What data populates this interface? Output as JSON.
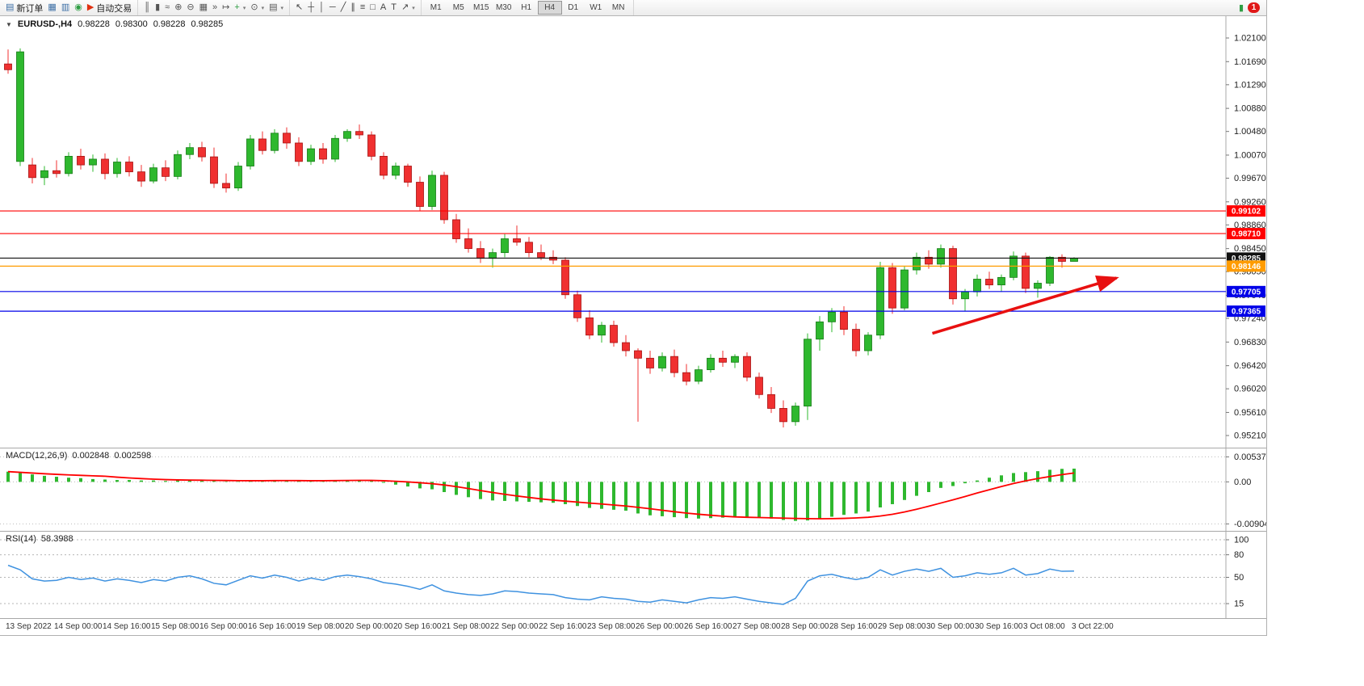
{
  "toolbar": {
    "groups": [
      {
        "items": [
          {
            "name": "new-order-button",
            "glyph": "▤",
            "glyph_color": "#3b6ea5",
            "label": "新订单"
          },
          {
            "name": "chart-window-icon",
            "glyph": "▦",
            "glyph_color": "#3b6ea5"
          },
          {
            "name": "market-watch-icon",
            "glyph": "▥",
            "glyph_color": "#3b6ea5"
          },
          {
            "name": "support-icon",
            "glyph": "◉",
            "glyph_color": "#2f9e44"
          },
          {
            "name": "auto-trading-button",
            "glyph": "▶",
            "glyph_color": "#e03010",
            "label": "自动交易"
          }
        ]
      },
      {
        "items": [
          {
            "name": "bar-chart-icon",
            "glyph": "║",
            "glyph_color": "#555"
          },
          {
            "name": "candlestick-chart-icon",
            "glyph": "▮",
            "glyph_color": "#555"
          },
          {
            "name": "line-chart-icon",
            "glyph": "≈",
            "glyph_color": "#555"
          },
          {
            "name": "zoom-in-icon",
            "glyph": "⊕",
            "glyph_color": "#555"
          },
          {
            "name": "zoom-out-icon",
            "glyph": "⊖",
            "glyph_color": "#555"
          },
          {
            "name": "tile-windows-icon",
            "glyph": "▦",
            "glyph_color": "#555"
          },
          {
            "name": "auto-scroll-icon",
            "glyph": "»",
            "glyph_color": "#555"
          },
          {
            "name": "chart-shift-icon",
            "glyph": "↦",
            "glyph_color": "#555"
          },
          {
            "name": "indicators-icon",
            "glyph": "+",
            "glyph_color": "#2f9e44",
            "caret": true
          },
          {
            "name": "periods-icon",
            "glyph": "⊙",
            "glyph_color": "#555",
            "caret": true
          },
          {
            "name": "templates-icon",
            "glyph": "▤",
            "glyph_color": "#555",
            "caret": true
          }
        ]
      },
      {
        "items": [
          {
            "name": "cursor-icon",
            "glyph": "↖",
            "glyph_color": "#444"
          },
          {
            "name": "crosshair-icon",
            "glyph": "┼",
            "glyph_color": "#444"
          },
          {
            "name": "vertical-line-icon",
            "glyph": "│",
            "glyph_color": "#444"
          },
          {
            "name": "horizontal-line-icon",
            "glyph": "─",
            "glyph_color": "#444"
          },
          {
            "name": "trendline-icon",
            "glyph": "╱",
            "glyph_color": "#444"
          },
          {
            "name": "channel-icon",
            "glyph": "∥",
            "glyph_color": "#444"
          },
          {
            "name": "fibonacci-icon",
            "glyph": "≡",
            "glyph_color": "#444"
          },
          {
            "name": "shapes-icon",
            "glyph": "□",
            "glyph_color": "#444"
          },
          {
            "name": "text-icon",
            "glyph": "A",
            "glyph_color": "#444"
          },
          {
            "name": "text-label-icon",
            "glyph": "T",
            "glyph_color": "#444"
          },
          {
            "name": "arrow-tools-icon",
            "glyph": "↗",
            "glyph_color": "#444",
            "caret": true
          }
        ]
      }
    ],
    "timeframes": [
      "M1",
      "M5",
      "M15",
      "M30",
      "H1",
      "H4",
      "D1",
      "W1",
      "MN"
    ],
    "active_timeframe": "H4",
    "notification_badge": "1"
  },
  "chart": {
    "collapse_icon": "▼",
    "symbol_label": "EURUSD-,H4",
    "open": "0.98228",
    "high": "0.98300",
    "low": "0.98228",
    "close": "0.98285"
  },
  "macd_label": {
    "title": "MACD(12,26,9)",
    "value1": "0.002848",
    "value2": "0.002598"
  },
  "rsi_label": {
    "title": "RSI(14)",
    "value": "58.3988"
  },
  "chart_data": [
    {
      "type": "candlestick",
      "symbol": "EURUSD",
      "timeframe": "H4",
      "title": "EURUSD-,H4",
      "ylim": [
        0.9521,
        1.021
      ],
      "y_ticks": [
        "1.02100",
        "1.01690",
        "1.01290",
        "1.00880",
        "1.00480",
        "1.00070",
        "0.99670",
        "0.99260",
        "0.98860",
        "0.98450",
        "0.98050",
        "0.97640",
        "0.97240",
        "0.96830",
        "0.96420",
        "0.96020",
        "0.95610",
        "0.95210"
      ],
      "time_labels": [
        "13 Sep 2022",
        "14 Sep 00:00",
        "14 Sep 16:00",
        "15 Sep 08:00",
        "16 Sep 00:00",
        "16 Sep 16:00",
        "19 Sep 08:00",
        "20 Sep 00:00",
        "20 Sep 16:00",
        "21 Sep 08:00",
        "22 Sep 00:00",
        "22 Sep 16:00",
        "23 Sep 08:00",
        "26 Sep 00:00",
        "26 Sep 16:00",
        "27 Sep 08:00",
        "28 Sep 00:00",
        "28 Sep 16:00",
        "29 Sep 08:00",
        "30 Sep 00:00",
        "30 Sep 16:00",
        "3 Oct 08:00",
        "3 Oct 22:00"
      ],
      "candles_per_time_label": 4,
      "up_color": "#2eb82e",
      "down_color": "#f03030",
      "up_border": "#157a15",
      "down_border": "#a51111",
      "candles": [
        [
          1.0165,
          1.019,
          1.0148,
          1.0155
        ],
        [
          0.9996,
          1.0192,
          0.9988,
          1.0186
        ],
        [
          0.999,
          1.0002,
          0.9958,
          0.9968
        ],
        [
          0.9968,
          0.9988,
          0.9955,
          0.998
        ],
        [
          0.998,
          0.9998,
          0.9968,
          0.9975
        ],
        [
          0.9975,
          1.0012,
          0.997,
          1.0005
        ],
        [
          1.0005,
          1.0018,
          0.9982,
          0.999
        ],
        [
          0.999,
          1.0008,
          0.9978,
          1.0
        ],
        [
          1.0,
          1.001,
          0.9965,
          0.9975
        ],
        [
          0.9975,
          1.0002,
          0.9968,
          0.9995
        ],
        [
          0.9995,
          1.0005,
          0.997,
          0.9978
        ],
        [
          0.9978,
          0.999,
          0.9952,
          0.9962
        ],
        [
          0.9962,
          0.9992,
          0.9958,
          0.9985
        ],
        [
          0.9985,
          0.9998,
          0.9962,
          0.997
        ],
        [
          0.997,
          1.0015,
          0.9965,
          1.0008
        ],
        [
          1.0008,
          1.0028,
          1.0,
          1.002
        ],
        [
          1.002,
          1.003,
          0.9996,
          1.0004
        ],
        [
          1.0004,
          1.002,
          0.995,
          0.9958
        ],
        [
          0.9958,
          0.9975,
          0.9942,
          0.995
        ],
        [
          0.995,
          0.9995,
          0.9945,
          0.9988
        ],
        [
          0.9988,
          1.0042,
          0.9982,
          1.0035
        ],
        [
          1.0035,
          1.0048,
          1.0008,
          1.0015
        ],
        [
          1.0015,
          1.0052,
          1.001,
          1.0045
        ],
        [
          1.0045,
          1.0055,
          1.0018,
          1.0028
        ],
        [
          1.0028,
          1.0038,
          0.9988,
          0.9996
        ],
        [
          0.9996,
          1.0025,
          0.999,
          1.0018
        ],
        [
          1.0018,
          1.0028,
          0.9992,
          1.0
        ],
        [
          1.0,
          1.0042,
          0.9995,
          1.0036
        ],
        [
          1.0036,
          1.0052,
          1.003,
          1.0048
        ],
        [
          1.0048,
          1.006,
          1.0035,
          1.0042
        ],
        [
          1.0042,
          1.0048,
          0.9998,
          1.0005
        ],
        [
          1.0005,
          1.0012,
          0.9965,
          0.9972
        ],
        [
          0.9972,
          0.9994,
          0.9965,
          0.9988
        ],
        [
          0.9988,
          0.9992,
          0.9952,
          0.996
        ],
        [
          0.996,
          0.997,
          0.991,
          0.9918
        ],
        [
          0.9918,
          0.998,
          0.9912,
          0.9972
        ],
        [
          0.9972,
          0.9978,
          0.9888,
          0.9895
        ],
        [
          0.9895,
          0.9905,
          0.9855,
          0.9862
        ],
        [
          0.9862,
          0.988,
          0.9838,
          0.9845
        ],
        [
          0.9845,
          0.9858,
          0.982,
          0.9828
        ],
        [
          0.9828,
          0.9845,
          0.9812,
          0.9838
        ],
        [
          0.9838,
          0.987,
          0.983,
          0.9862
        ],
        [
          0.9862,
          0.9885,
          0.985,
          0.9856
        ],
        [
          0.9856,
          0.9865,
          0.983,
          0.9838
        ],
        [
          0.9838,
          0.9852,
          0.9825,
          0.983
        ],
        [
          0.983,
          0.9842,
          0.9818,
          0.9825
        ],
        [
          0.9825,
          0.983,
          0.9758,
          0.9765
        ],
        [
          0.9765,
          0.9772,
          0.9718,
          0.9725
        ],
        [
          0.9725,
          0.9738,
          0.9688,
          0.9695
        ],
        [
          0.9695,
          0.9718,
          0.9682,
          0.9712
        ],
        [
          0.9712,
          0.972,
          0.9675,
          0.9682
        ],
        [
          0.9682,
          0.9695,
          0.9658,
          0.9668
        ],
        [
          0.9668,
          0.9672,
          0.9545,
          0.9655
        ],
        [
          0.9655,
          0.9668,
          0.9628,
          0.9638
        ],
        [
          0.9638,
          0.9665,
          0.9632,
          0.9658
        ],
        [
          0.9658,
          0.967,
          0.9622,
          0.963
        ],
        [
          0.963,
          0.9645,
          0.9608,
          0.9615
        ],
        [
          0.9615,
          0.9642,
          0.961,
          0.9635
        ],
        [
          0.9635,
          0.9662,
          0.963,
          0.9655
        ],
        [
          0.9655,
          0.9668,
          0.964,
          0.9648
        ],
        [
          0.9648,
          0.9662,
          0.9638,
          0.9658
        ],
        [
          0.9658,
          0.9665,
          0.9615,
          0.9622
        ],
        [
          0.9622,
          0.963,
          0.9585,
          0.9592
        ],
        [
          0.9592,
          0.9605,
          0.956,
          0.9568
        ],
        [
          0.9568,
          0.9582,
          0.9535,
          0.9545
        ],
        [
          0.9545,
          0.9578,
          0.9538,
          0.9572
        ],
        [
          0.9572,
          0.9698,
          0.9548,
          0.9688
        ],
        [
          0.9688,
          0.9728,
          0.9668,
          0.9718
        ],
        [
          0.9718,
          0.9742,
          0.97,
          0.9735
        ],
        [
          0.9735,
          0.9745,
          0.9695,
          0.9705
        ],
        [
          0.9705,
          0.9715,
          0.9658,
          0.9668
        ],
        [
          0.9668,
          0.97,
          0.966,
          0.9695
        ],
        [
          0.9695,
          0.9822,
          0.9688,
          0.9812
        ],
        [
          0.9812,
          0.982,
          0.9732,
          0.9742
        ],
        [
          0.9742,
          0.9815,
          0.9738,
          0.9808
        ],
        [
          0.9808,
          0.9838,
          0.98,
          0.983
        ],
        [
          0.983,
          0.9842,
          0.981,
          0.9818
        ],
        [
          0.9818,
          0.9852,
          0.9812,
          0.9845
        ],
        [
          0.9845,
          0.985,
          0.9748,
          0.9758
        ],
        [
          0.9758,
          0.9775,
          0.9737,
          0.977
        ],
        [
          0.977,
          0.98,
          0.9762,
          0.9792
        ],
        [
          0.9792,
          0.9805,
          0.9775,
          0.9782
        ],
        [
          0.9782,
          0.98,
          0.977,
          0.9795
        ],
        [
          0.9795,
          0.984,
          0.979,
          0.9832
        ],
        [
          0.9832,
          0.9838,
          0.9768,
          0.9776
        ],
        [
          0.9776,
          0.979,
          0.976,
          0.9785
        ],
        [
          0.9785,
          0.9832,
          0.978,
          0.983
        ],
        [
          0.983,
          0.9835,
          0.9812,
          0.98228
        ],
        [
          0.98228,
          0.983,
          0.98228,
          0.98285
        ]
      ],
      "hlines": [
        {
          "price": 0.99102,
          "label": "0.99102",
          "color": "#ff0000"
        },
        {
          "price": 0.9871,
          "label": "0.98710",
          "color": "#ff0000"
        },
        {
          "price": 0.98285,
          "label": "0.98285",
          "color": "#111111"
        },
        {
          "price": 0.98146,
          "label": "0.98146",
          "color": "#ff9c00"
        },
        {
          "price": 0.97705,
          "label": "0.97705",
          "color": "#0000e8"
        },
        {
          "price": 0.97365,
          "label": "0.97365",
          "color": "#0000e8"
        }
      ],
      "trend_arrow": {
        "from_index": 76.3,
        "from_price": 0.9698,
        "to_index": 91.5,
        "to_price": 0.9794,
        "color": "#e81010"
      }
    },
    {
      "type": "bar",
      "title": "MACD(12,26,9)",
      "current_macd": 0.002848,
      "current_signal": 0.002598,
      "ylim": [
        -0.0095,
        0.0058
      ],
      "y_ticks": [
        "0.005378",
        "0.00",
        "-0.009043"
      ],
      "y_tick_values": [
        0.005378,
        0,
        -0.009043
      ],
      "histogram_color": "#2eb82e",
      "signal_color": "#ff0000",
      "signal_period": 9,
      "histogram": [
        0.0022,
        0.0019,
        0.0016,
        0.0013,
        0.0011,
        0.0009,
        0.0008,
        0.0006,
        0.0005,
        0.0004,
        0.0004,
        0.0003,
        0.0003,
        0.0002,
        0.0003,
        0.0004,
        0.0004,
        0.0002,
        0.0001,
        0.0001,
        0.0002,
        0.0003,
        0.0004,
        0.0004,
        0.0003,
        0.0002,
        0.0002,
        0.0003,
        0.0004,
        0.0004,
        0.0002,
        -0.0002,
        -0.0006,
        -0.001,
        -0.0014,
        -0.0016,
        -0.0022,
        -0.0028,
        -0.0033,
        -0.0037,
        -0.004,
        -0.0041,
        -0.0042,
        -0.0043,
        -0.0044,
        -0.0045,
        -0.0048,
        -0.0052,
        -0.0056,
        -0.0058,
        -0.006,
        -0.0062,
        -0.0068,
        -0.0072,
        -0.0074,
        -0.0076,
        -0.0078,
        -0.0079,
        -0.0078,
        -0.0077,
        -0.0076,
        -0.0076,
        -0.0077,
        -0.0079,
        -0.0082,
        -0.0084,
        -0.0083,
        -0.008,
        -0.0075,
        -0.0071,
        -0.0068,
        -0.0064,
        -0.0055,
        -0.0048,
        -0.0039,
        -0.003,
        -0.0022,
        -0.0013,
        -0.0009,
        -0.0003,
        0.0003,
        0.0009,
        0.0014,
        0.0019,
        0.0021,
        0.0023,
        0.0026,
        0.0028,
        0.002848
      ]
    },
    {
      "type": "line",
      "title": "RSI(14)",
      "current_value": 58.3988,
      "ylim": [
        0,
        100
      ],
      "y_ticks": [
        "100",
        "80",
        "50",
        "15"
      ],
      "y_tick_values": [
        100,
        80,
        50,
        15
      ],
      "line_color": "#3f92e0",
      "values": [
        66,
        60,
        48,
        45,
        46,
        50,
        47,
        49,
        45,
        48,
        46,
        43,
        47,
        45,
        50,
        52,
        48,
        42,
        40,
        46,
        52,
        49,
        53,
        50,
        45,
        49,
        46,
        51,
        53,
        51,
        48,
        43,
        41,
        38,
        34,
        40,
        32,
        29,
        27,
        26,
        28,
        32,
        31,
        29,
        28,
        27,
        23,
        21,
        20,
        24,
        22,
        21,
        18,
        17,
        20,
        18,
        16,
        20,
        23,
        22,
        24,
        21,
        18,
        16,
        14,
        22,
        45,
        52,
        54,
        50,
        47,
        50,
        60,
        53,
        58,
        61,
        58,
        62,
        50,
        52,
        56,
        54,
        56,
        62,
        53,
        55,
        61,
        58,
        58.4
      ]
    }
  ]
}
